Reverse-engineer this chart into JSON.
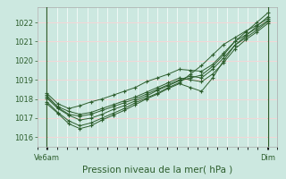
{
  "title": "Pression niveau de la mer( hPa )",
  "xlabel_left": "Ve6am",
  "xlabel_right": "Dim",
  "bg_color": "#cce8e0",
  "plot_bg_color": "#cce8e0",
  "grid_color_h": "#ffffff",
  "grid_color_v": "#ffffff",
  "line_color": "#2d5e2d",
  "ylim": [
    1015.5,
    1022.8
  ],
  "yticks": [
    1016,
    1017,
    1018,
    1019,
    1020,
    1021,
    1022
  ],
  "vline_color": "#3a6e3a",
  "series": [
    [
      1018.3,
      1017.75,
      1017.5,
      1017.65,
      1017.85,
      1018.0,
      1018.2,
      1018.4,
      1018.6,
      1018.9,
      1019.1,
      1019.3,
      1019.55,
      1019.5,
      1019.45,
      1019.8,
      1020.4,
      1021.0,
      1021.5,
      1022.0,
      1022.5
    ],
    [
      1018.1,
      1017.6,
      1017.35,
      1017.2,
      1017.3,
      1017.5,
      1017.7,
      1017.9,
      1018.1,
      1018.35,
      1018.6,
      1018.85,
      1019.1,
      1019.0,
      1018.9,
      1019.3,
      1019.9,
      1020.6,
      1021.1,
      1021.5,
      1021.95
    ],
    [
      1018.05,
      1017.5,
      1017.15,
      1016.9,
      1017.0,
      1017.2,
      1017.45,
      1017.65,
      1017.9,
      1018.15,
      1018.45,
      1018.7,
      1018.95,
      1019.1,
      1019.25,
      1019.7,
      1020.3,
      1021.0,
      1021.35,
      1021.7,
      1022.1
    ],
    [
      1017.85,
      1017.3,
      1016.85,
      1016.6,
      1016.75,
      1017.0,
      1017.25,
      1017.5,
      1017.8,
      1018.05,
      1018.3,
      1018.6,
      1018.85,
      1019.3,
      1019.75,
      1020.3,
      1020.85,
      1021.2,
      1021.55,
      1021.85,
      1022.2
    ],
    [
      1017.75,
      1017.25,
      1016.7,
      1016.45,
      1016.6,
      1016.9,
      1017.15,
      1017.4,
      1017.7,
      1018.0,
      1018.25,
      1018.55,
      1018.8,
      1018.6,
      1018.4,
      1019.1,
      1020.0,
      1020.8,
      1021.3,
      1021.8,
      1022.3
    ],
    [
      1018.2,
      1017.55,
      1017.2,
      1017.1,
      1017.2,
      1017.4,
      1017.6,
      1017.8,
      1018.0,
      1018.25,
      1018.5,
      1018.75,
      1019.0,
      1019.2,
      1019.1,
      1019.55,
      1020.15,
      1020.8,
      1021.2,
      1021.6,
      1022.05
    ]
  ],
  "n_points": 21,
  "xlim": [
    0,
    1
  ],
  "vline_left_x": 0.04,
  "vline_right_x": 0.96,
  "figsize": [
    3.2,
    2.0
  ],
  "dpi": 100
}
